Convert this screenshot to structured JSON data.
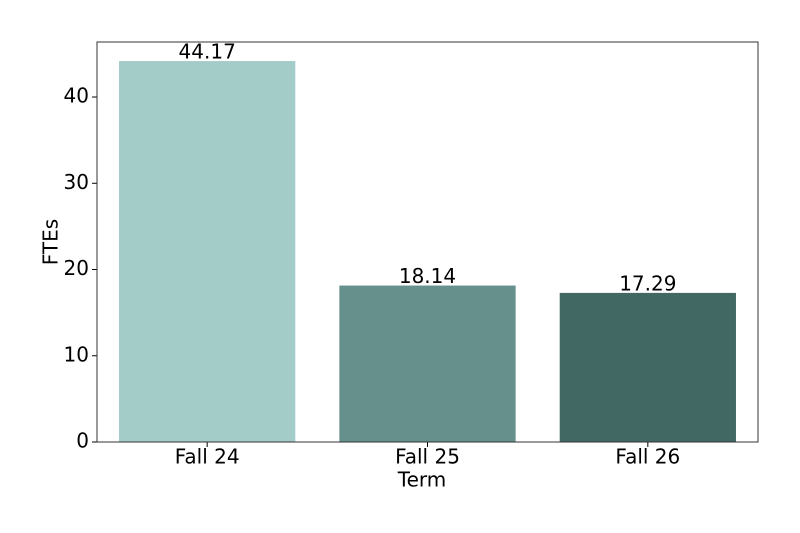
{
  "chart_data": {
    "type": "bar",
    "xlabel": "Term",
    "ylabel": "FTEs",
    "categories": [
      "Fall 24",
      "Fall 25",
      "Fall 26"
    ],
    "values": [
      44.17,
      18.14,
      17.29
    ],
    "colors": [
      "#a3cbc8",
      "#65908c",
      "#426864"
    ],
    "ylim": [
      0,
      46.38
    ],
    "yticks": [
      0,
      10,
      20,
      30,
      40
    ],
    "grid": false
  }
}
